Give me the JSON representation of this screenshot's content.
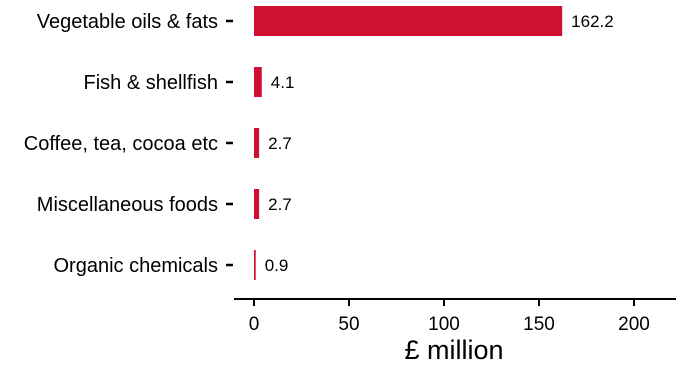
{
  "chart_data": {
    "type": "bar",
    "orientation": "horizontal",
    "categories": [
      "Vegetable oils & fats",
      "Fish & shellfish",
      "Coffee, tea, cocoa etc",
      "Miscellaneous foods",
      "Organic chemicals"
    ],
    "values": [
      162.2,
      4.1,
      2.7,
      2.7,
      0.9
    ],
    "value_labels": [
      "162.2",
      "4.1",
      "2.7",
      "2.7",
      "0.9"
    ],
    "xlabel": "£ million",
    "ylabel": "",
    "xlim": [
      0,
      220
    ],
    "xticks": [
      0,
      50,
      100,
      150,
      200
    ],
    "xtick_labels": [
      "0",
      "50",
      "100",
      "150",
      "200"
    ],
    "grid": false,
    "bar_color": "#d01030"
  }
}
